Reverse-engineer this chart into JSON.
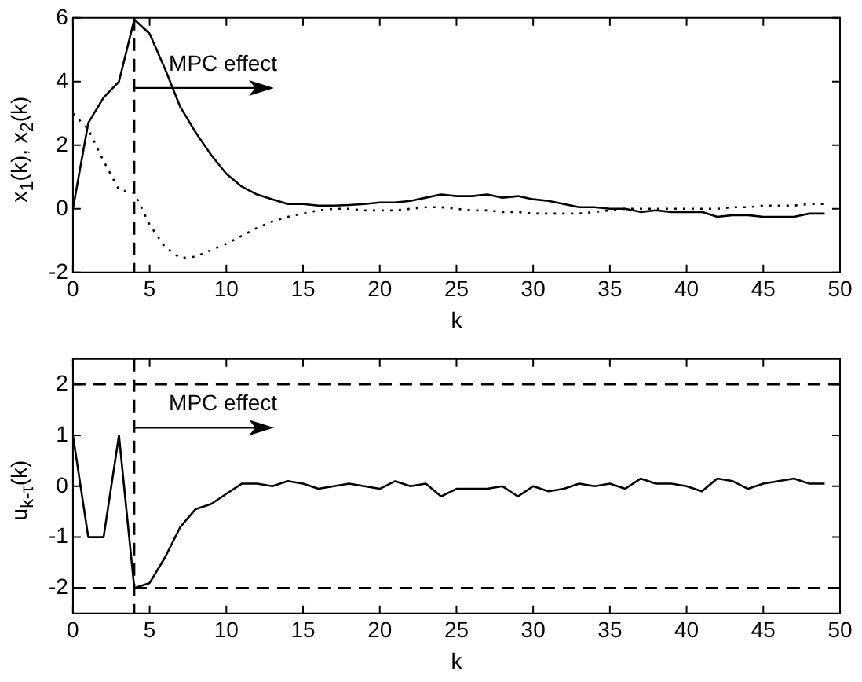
{
  "chart_data": [
    {
      "type": "line",
      "xlabel": "k",
      "ylabel": "x$_{1}$(k), x$_{2}$(k)",
      "x": [
        0,
        1,
        2,
        3,
        4,
        5,
        6,
        7,
        8,
        9,
        10,
        11,
        12,
        13,
        14,
        15,
        16,
        17,
        18,
        19,
        20,
        21,
        22,
        23,
        24,
        25,
        26,
        27,
        28,
        29,
        30,
        31,
        32,
        33,
        34,
        35,
        36,
        37,
        38,
        39,
        40,
        41,
        42,
        43,
        44,
        45,
        46,
        47,
        48,
        49
      ],
      "series": [
        {
          "color": "#000000",
          "line_style": "solid",
          "values": [
            0,
            2.7,
            3.5,
            4.0,
            5.95,
            5.5,
            4.4,
            3.2,
            2.4,
            1.7,
            1.1,
            0.7,
            0.45,
            0.3,
            0.15,
            0.15,
            0.1,
            0.1,
            0.12,
            0.15,
            0.2,
            0.2,
            0.25,
            0.35,
            0.45,
            0.4,
            0.4,
            0.45,
            0.35,
            0.4,
            0.3,
            0.25,
            0.15,
            0.05,
            0.05,
            0.0,
            0.0,
            -0.1,
            -0.05,
            -0.1,
            -0.1,
            -0.1,
            -0.25,
            -0.2,
            -0.2,
            -0.25,
            -0.25,
            -0.25,
            -0.15,
            -0.15
          ]
        },
        {
          "color": "#000000",
          "line_style": "dotted",
          "values": [
            3.0,
            2.5,
            1.5,
            0.6,
            0.5,
            -0.5,
            -1.2,
            -1.55,
            -1.5,
            -1.3,
            -1.1,
            -0.85,
            -0.6,
            -0.4,
            -0.25,
            -0.15,
            -0.05,
            0.0,
            0.0,
            -0.05,
            -0.05,
            -0.05,
            0.0,
            0.05,
            0.05,
            0.0,
            -0.05,
            -0.05,
            -0.1,
            -0.1,
            -0.15,
            -0.15,
            -0.15,
            -0.15,
            -0.1,
            -0.05,
            0.0,
            0.0,
            0.0,
            0.0,
            0.0,
            0.0,
            0.0,
            0.05,
            0.05,
            0.1,
            0.1,
            0.1,
            0.15,
            0.15
          ]
        }
      ],
      "xlim": [
        0,
        50
      ],
      "xticks": [
        0,
        5,
        10,
        15,
        20,
        25,
        30,
        35,
        40,
        45,
        50
      ],
      "ylim": [
        -2,
        6
      ],
      "yticks": [
        -2,
        0,
        2,
        4,
        6
      ],
      "ref_lines": [
        {
          "axis": "x",
          "value": 4,
          "line_style": "dashed"
        }
      ],
      "annotations": [
        {
          "text": "MPC effect",
          "x": 4,
          "y": 3.8
        }
      ],
      "grid": false,
      "legend": false,
      "marker": "none"
    },
    {
      "type": "line",
      "xlabel": "k",
      "ylabel": "u$_{k-τ}$(k)",
      "x": [
        0,
        1,
        2,
        3,
        4,
        5,
        6,
        7,
        8,
        9,
        10,
        11,
        12,
        13,
        14,
        15,
        16,
        17,
        18,
        19,
        20,
        21,
        22,
        23,
        24,
        25,
        26,
        27,
        28,
        29,
        30,
        31,
        32,
        33,
        34,
        35,
        36,
        37,
        38,
        39,
        40,
        41,
        42,
        43,
        44,
        45,
        46,
        47,
        48,
        49
      ],
      "series": [
        {
          "color": "#000000",
          "line_style": "solid",
          "values": [
            1,
            -1,
            -1,
            1,
            -2,
            -1.9,
            -1.4,
            -0.8,
            -0.45,
            -0.35,
            -0.15,
            0.05,
            0.05,
            0,
            0.1,
            0.05,
            -0.05,
            0,
            0.05,
            0,
            -0.05,
            0.1,
            0,
            0.05,
            -0.2,
            -0.05,
            -0.05,
            -0.05,
            0,
            -0.2,
            0,
            -0.1,
            -0.05,
            0.05,
            0,
            0.05,
            -0.05,
            0.15,
            0.05,
            0.05,
            0,
            -0.1,
            0.15,
            0.1,
            -0.05,
            0.05,
            0.1,
            0.15,
            0.05,
            0.05
          ]
        }
      ],
      "xlim": [
        0,
        50
      ],
      "xticks": [
        0,
        5,
        10,
        15,
        20,
        25,
        30,
        35,
        40,
        45,
        50
      ],
      "ylim": [
        -2.5,
        2.5
      ],
      "yticks": [
        -2,
        -1,
        0,
        1,
        2
      ],
      "ref_lines": [
        {
          "axis": "x",
          "value": 4,
          "line_style": "dashed"
        },
        {
          "axis": "y",
          "value": 2,
          "line_style": "dashed"
        },
        {
          "axis": "y",
          "value": -2,
          "line_style": "dashed"
        }
      ],
      "annotations": [
        {
          "text": "MPC effect",
          "x": 4,
          "y": 1.15
        }
      ],
      "grid": false,
      "legend": false,
      "marker": "none"
    }
  ]
}
